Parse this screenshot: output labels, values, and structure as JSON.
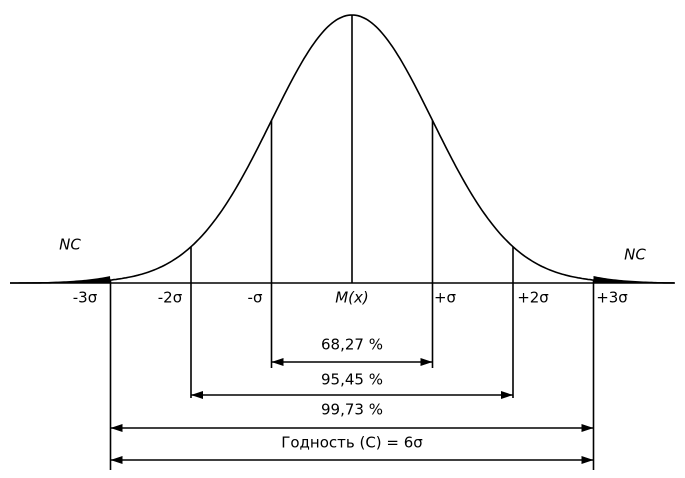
{
  "nc_left": "NC",
  "nc_right": "NC",
  "axis_labels": [
    "-3σ",
    "-2σ",
    "-σ",
    "M(x)",
    "+σ",
    "+2σ",
    "+3σ"
  ],
  "intervals": [
    {
      "label": "68,27 %"
    },
    {
      "label": "95,45 %"
    },
    {
      "label": "99,73 %"
    }
  ],
  "range_label": "Годность (C) = 6σ"
}
